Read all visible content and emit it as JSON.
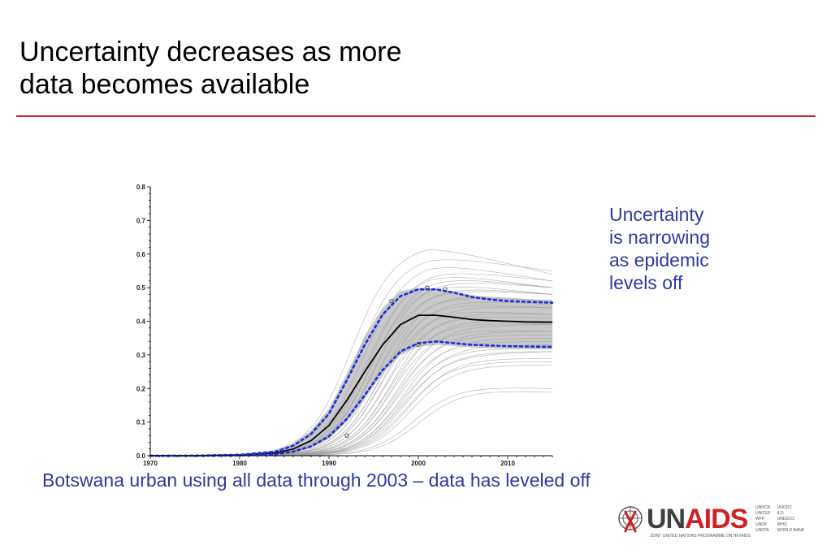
{
  "slide": {
    "title_lines": [
      "Uncertainty decreases as more",
      "data becomes available"
    ],
    "note_lines": [
      "Uncertainty",
      "is narrowing",
      "as epidemic",
      "levels off"
    ],
    "caption": "Botswana urban using all data through 2003 – data has leveled off",
    "accent_color": "#cc2229",
    "text_color": "#2e3a9c"
  },
  "logo": {
    "word_un": "UN",
    "word_aids": "AIDS",
    "tagline": "JOINT UNITED NATIONS PROGRAMME ON HIV/AIDS",
    "cosponsors_left": [
      "UNHCR",
      "UNICEF",
      "WFP",
      "UNDP",
      "UNFPA"
    ],
    "cosponsors_right": [
      "UNODC",
      "ILO",
      "UNESCO",
      "WHO",
      "WORLD BANK"
    ]
  },
  "chart_data": {
    "type": "line",
    "title": "",
    "xlabel": "",
    "ylabel": "",
    "xlim": [
      1970,
      2015
    ],
    "ylim": [
      0,
      0.8
    ],
    "x_ticks": [
      1970,
      1980,
      1990,
      2000,
      2010
    ],
    "y_ticks": [
      "0.0",
      "0.1",
      "0.2",
      "0.3",
      "0.4",
      "0.5",
      "0.6",
      "0.7",
      "0.8"
    ],
    "grid": false,
    "legend": "none",
    "x": [
      1970,
      1975,
      1980,
      1984,
      1986,
      1988,
      1990,
      1992,
      1994,
      1996,
      1998,
      2000,
      2002,
      2004,
      2006,
      2008,
      2010,
      2012,
      2015
    ],
    "series": [
      {
        "role": "median",
        "color": "#000000",
        "style": "solid",
        "values": [
          0.0,
          0.0,
          0.002,
          0.008,
          0.02,
          0.045,
          0.09,
          0.165,
          0.25,
          0.33,
          0.39,
          0.418,
          0.418,
          0.412,
          0.405,
          0.402,
          0.4,
          0.398,
          0.397
        ]
      },
      {
        "role": "upper bound",
        "color": "#1f2fd6",
        "style": "dotted",
        "values": [
          0.0,
          0.0,
          0.003,
          0.012,
          0.03,
          0.065,
          0.125,
          0.225,
          0.33,
          0.42,
          0.475,
          0.495,
          0.495,
          0.485,
          0.472,
          0.465,
          0.46,
          0.458,
          0.455
        ]
      },
      {
        "role": "lower bound",
        "color": "#1f2fd6",
        "style": "dotted",
        "values": [
          0.0,
          0.0,
          0.001,
          0.004,
          0.012,
          0.028,
          0.058,
          0.11,
          0.18,
          0.255,
          0.31,
          0.335,
          0.34,
          0.335,
          0.33,
          0.328,
          0.326,
          0.325,
          0.324
        ]
      }
    ],
    "band": {
      "color": "#c8c8c8",
      "upper": [
        0.0,
        0.0,
        0.004,
        0.015,
        0.036,
        0.075,
        0.14,
        0.245,
        0.355,
        0.44,
        0.49,
        0.5,
        0.497,
        0.488,
        0.478,
        0.472,
        0.468,
        0.465,
        0.463
      ],
      "lower": [
        0.0,
        0.0,
        0.001,
        0.003,
        0.01,
        0.024,
        0.05,
        0.1,
        0.17,
        0.245,
        0.3,
        0.325,
        0.33,
        0.327,
        0.322,
        0.32,
        0.318,
        0.317,
        0.316
      ]
    },
    "fit_curves": {
      "color": "#9a9a9a",
      "peaks": [
        0.63,
        0.6,
        0.58,
        0.56,
        0.55,
        0.54,
        0.53,
        0.52,
        0.51,
        0.5,
        0.49,
        0.48,
        0.47,
        0.46,
        0.45,
        0.44,
        0.43,
        0.42,
        0.41,
        0.4,
        0.39,
        0.38,
        0.37,
        0.36,
        0.35,
        0.34,
        0.33,
        0.32,
        0.31,
        0.3,
        0.29,
        0.28,
        0.27,
        0.21,
        0.2
      ],
      "midpoints": [
        1992.5,
        1993.2,
        1993.8,
        1994.5,
        1994.2,
        1994.8,
        1995.2,
        1994.6,
        1995.6,
        1995.0,
        1996.0,
        1995.4,
        1996.2,
        1995.8,
        1996.6,
        1996.0,
        1997.0,
        1996.4,
        1997.2,
        1996.8,
        1997.6,
        1997.0,
        1997.8,
        1997.4,
        1998.2,
        1997.6,
        1998.4,
        1998.0,
        1998.6,
        1998.2,
        1999.0,
        1998.6,
        1999.2,
        1999.6,
        2000.2
      ],
      "declines": [
        0.09,
        0.05,
        0.06,
        0.04,
        0.05,
        0.04,
        0.03,
        0.04,
        0.03,
        0.02,
        0.03,
        0.02,
        0.02,
        0.02,
        0.01,
        0.02,
        0.01,
        0.01,
        0.01,
        0.01,
        0.0,
        0.01,
        0.0,
        0.0,
        0.0,
        0.0,
        0.0,
        0.0,
        0.0,
        -0.01,
        0.0,
        0.0,
        0.0,
        0.01,
        0.01
      ]
    },
    "observations": [
      {
        "x": 1992,
        "y": 0.06
      },
      {
        "x": 2000,
        "y": 0.33
      },
      {
        "x": 2001,
        "y": 0.5
      },
      {
        "x": 2003,
        "y": 0.495
      },
      {
        "x": 1997,
        "y": 0.46
      }
    ]
  }
}
